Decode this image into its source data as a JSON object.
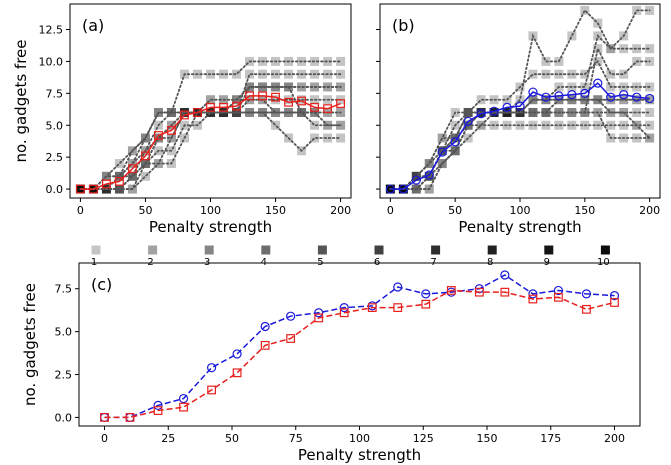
{
  "chart_data": [
    {
      "id": "a",
      "type": "scatter",
      "panel_label": "(a)",
      "xlabel": "Penalty strength",
      "ylabel": "no. gadgets free",
      "xlim": [
        -8,
        208
      ],
      "ylim": [
        -0.7,
        14.5
      ],
      "xticks": [
        0,
        50,
        100,
        150,
        200
      ],
      "yticks": [
        0.0,
        2.5,
        5.0,
        7.5,
        10.0,
        12.5
      ],
      "ytick_labels": [
        "0.0",
        "2.5",
        "5.0",
        "7.5",
        "10.0",
        "12.5"
      ],
      "grid": false,
      "mean": {
        "color": "#e8201c",
        "marker": "square",
        "x": [
          0,
          10,
          20,
          30,
          40,
          50,
          60,
          70,
          80,
          90,
          100,
          110,
          120,
          130,
          140,
          150,
          160,
          170,
          180,
          190,
          200
        ],
        "y": [
          0,
          0,
          0.4,
          0.6,
          1.6,
          2.6,
          4.2,
          4.6,
          5.8,
          6.0,
          6.4,
          6.4,
          6.5,
          7.3,
          7.3,
          7.2,
          6.8,
          6.9,
          6.4,
          6.3,
          6.7
        ]
      },
      "runs": [
        {
          "y": [
            0,
            0,
            0,
            0,
            0,
            2,
            2,
            4,
            6,
            6,
            6,
            6,
            6,
            6,
            6,
            6,
            6,
            6,
            6,
            6,
            6
          ]
        },
        {
          "y": [
            0,
            0,
            0,
            0,
            1,
            2,
            4,
            4,
            6,
            6,
            6,
            6,
            6,
            7,
            7,
            7,
            7,
            7,
            7,
            7,
            7
          ]
        },
        {
          "y": [
            0,
            0,
            1,
            1,
            2,
            3,
            5,
            6,
            6,
            6,
            7,
            7,
            7,
            8,
            8,
            8,
            8,
            8,
            8,
            8,
            8
          ]
        },
        {
          "y": [
            0,
            0,
            0,
            1,
            1,
            3,
            4,
            5,
            6,
            6,
            6,
            6,
            6,
            8,
            8,
            8,
            8,
            6,
            6,
            5,
            5
          ]
        },
        {
          "y": [
            0,
            0,
            1,
            1,
            3,
            4,
            6,
            6,
            6,
            6,
            6,
            6,
            6,
            9,
            9,
            9,
            9,
            9,
            9,
            9,
            9
          ]
        },
        {
          "y": [
            0,
            0,
            0,
            0,
            0,
            1,
            2,
            2,
            4,
            6,
            6,
            6,
            6,
            6,
            6,
            5,
            4,
            3,
            4,
            4,
            4
          ]
        },
        {
          "y": [
            0,
            0,
            1,
            2,
            3,
            4,
            6,
            6,
            6,
            6,
            7,
            7,
            7,
            8,
            8,
            8,
            8,
            8,
            8,
            8,
            8
          ]
        },
        {
          "y": [
            0,
            0,
            0,
            0,
            1,
            2,
            3,
            3,
            5,
            5,
            6,
            6,
            6,
            6,
            6,
            6,
            6,
            6,
            5,
            5,
            5
          ]
        },
        {
          "y": [
            0,
            0,
            0,
            0,
            1,
            2,
            4,
            5,
            6,
            6,
            6,
            6,
            7,
            7,
            7,
            6,
            6,
            6,
            6,
            6,
            6
          ]
        },
        {
          "y": [
            0,
            0,
            0,
            1,
            2,
            4,
            6,
            6,
            9,
            9,
            9,
            9,
            9,
            10,
            10,
            10,
            10,
            10,
            10,
            10,
            10
          ]
        }
      ]
    },
    {
      "id": "b",
      "type": "scatter",
      "panel_label": "(b)",
      "xlabel": "Penalty strength",
      "ylabel": "",
      "xlim": [
        -8,
        208
      ],
      "ylim": [
        -0.7,
        14.5
      ],
      "xticks": [
        0,
        50,
        100,
        150,
        200
      ],
      "yticks": [
        0.0,
        2.5,
        5.0,
        7.5,
        10.0,
        12.5
      ],
      "ytick_labels": [
        "",
        "",
        "",
        "",
        "",
        ""
      ],
      "grid": false,
      "mean": {
        "color": "#1a1adb",
        "marker": "circle",
        "x": [
          0,
          10,
          20,
          30,
          40,
          50,
          60,
          70,
          80,
          90,
          100,
          110,
          120,
          130,
          140,
          150,
          160,
          170,
          180,
          190,
          200
        ],
        "y": [
          0,
          0,
          0.7,
          1.1,
          2.9,
          3.7,
          5.3,
          5.9,
          6.1,
          6.4,
          6.5,
          7.6,
          7.2,
          7.3,
          7.4,
          7.5,
          8.3,
          7.2,
          7.4,
          7.2,
          7.1
        ]
      },
      "runs": [
        {
          "y": [
            0,
            0,
            0,
            1,
            3,
            5,
            6,
            6,
            6,
            6,
            6,
            6,
            6,
            6,
            6,
            6,
            6,
            6,
            6,
            6,
            6
          ]
        },
        {
          "y": [
            0,
            0,
            1,
            1,
            3,
            4,
            6,
            7,
            7,
            7,
            8,
            9,
            9,
            9,
            9,
            9,
            10,
            8,
            8,
            8,
            8
          ]
        },
        {
          "y": [
            0,
            0,
            0,
            0,
            2,
            3,
            5,
            5,
            5,
            5,
            5,
            5,
            5,
            5,
            5,
            5,
            5,
            5,
            5,
            5,
            5
          ]
        },
        {
          "y": [
            0,
            0,
            1,
            2,
            3,
            4,
            6,
            6,
            6,
            6,
            6,
            7,
            7,
            7,
            7,
            7,
            7,
            7,
            7,
            7,
            7
          ]
        },
        {
          "y": [
            0,
            0,
            0,
            1,
            2,
            3,
            4,
            5,
            6,
            6,
            7,
            12,
            10,
            10,
            12,
            14,
            13,
            11,
            12,
            14,
            14
          ]
        },
        {
          "y": [
            0,
            0,
            1,
            1,
            3,
            4,
            6,
            6,
            6,
            6,
            6,
            6,
            6,
            6,
            6,
            6,
            11,
            9,
            9,
            10,
            10
          ]
        },
        {
          "y": [
            0,
            0,
            0,
            0,
            2,
            3,
            5,
            6,
            6,
            6,
            6,
            7,
            7,
            7,
            7,
            7,
            7,
            7,
            7,
            7,
            7
          ]
        },
        {
          "y": [
            0,
            0,
            1,
            2,
            4,
            4,
            5,
            6,
            6,
            6,
            6,
            7,
            7,
            8,
            8,
            8,
            12,
            11,
            11,
            11,
            11
          ]
        },
        {
          "y": [
            0,
            0,
            1,
            1,
            3,
            3,
            5,
            6,
            6,
            6,
            6,
            6,
            6,
            6,
            6,
            6,
            6,
            4,
            4,
            4,
            4
          ]
        },
        {
          "y": [
            0,
            0,
            1,
            2,
            4,
            6,
            6,
            6,
            6,
            6,
            6,
            6,
            6,
            7,
            7,
            7,
            7,
            6,
            6,
            5,
            4
          ]
        }
      ]
    },
    {
      "id": "c",
      "type": "line",
      "panel_label": "(c)",
      "xlabel": "Penalty strength",
      "ylabel": "no. gadgets free",
      "xlim": [
        -10,
        210
      ],
      "ylim": [
        -0.5,
        9.0
      ],
      "xticks": [
        0,
        25,
        50,
        75,
        100,
        125,
        150,
        175,
        200
      ],
      "yticks": [
        0.0,
        2.5,
        5.0,
        7.5
      ],
      "ytick_labels": [
        "0.0",
        "2.5",
        "5.0",
        "7.5"
      ],
      "grid": false,
      "series": [
        {
          "color": "#1a1adb",
          "marker": "circle",
          "x": [
            0,
            10,
            21,
            31,
            42,
            52,
            63,
            73,
            84,
            94,
            105,
            115,
            126,
            136,
            147,
            157,
            168,
            178,
            189,
            200
          ],
          "y": [
            0,
            0,
            0.7,
            1.1,
            2.9,
            3.7,
            5.3,
            5.9,
            6.1,
            6.4,
            6.5,
            7.6,
            7.2,
            7.3,
            7.5,
            8.3,
            7.2,
            7.4,
            7.2,
            7.1
          ]
        },
        {
          "color": "#e8201c",
          "marker": "square",
          "x": [
            0,
            10,
            21,
            31,
            42,
            52,
            63,
            73,
            84,
            94,
            105,
            115,
            126,
            136,
            147,
            157,
            168,
            178,
            189,
            200
          ],
          "y": [
            0,
            0,
            0.4,
            0.6,
            1.6,
            2.6,
            4.2,
            4.6,
            5.8,
            6.1,
            6.4,
            6.4,
            6.6,
            7.4,
            7.3,
            7.3,
            6.9,
            7.0,
            6.3,
            6.7
          ]
        }
      ]
    }
  ],
  "legend": {
    "labels": [
      "1",
      "2",
      "3",
      "4",
      "5",
      "6",
      "7",
      "8",
      "9",
      "10"
    ],
    "colors": [
      "#c4c4c4",
      "#a2a2a2",
      "#858585",
      "#6c6c6c",
      "#555555",
      "#404040",
      "#2e2e2e",
      "#202020",
      "#151515",
      "#0b0b0b"
    ]
  }
}
